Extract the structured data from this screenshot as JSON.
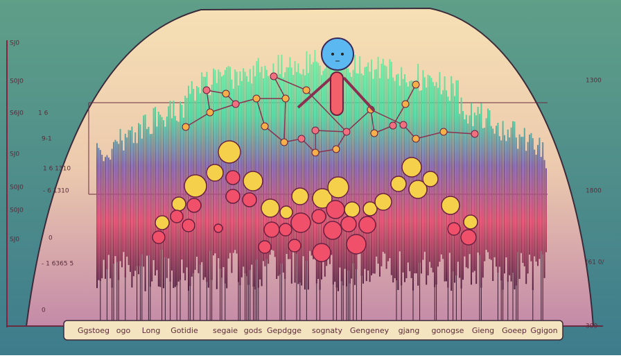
{
  "left_labels": [
    "SJ0",
    "S0J0",
    "S6J0",
    "SJ0",
    "S0J0",
    "S0J0",
    "SJ0"
  ],
  "inner_labels": [
    "1 6",
    "9-1",
    "1 6  1310",
    "- 6  1310",
    "0",
    "- 1 6365 5",
    "0"
  ],
  "right_labels": [
    "1300",
    "1800",
    "(61  0/",
    "300"
  ],
  "bottom_labels": [
    "Ggstoeg",
    "ogo",
    "Long",
    "Gotidie",
    "segaie",
    "gods",
    "Gepdgge",
    "sognaty",
    "Gengeney",
    "gjang",
    "gonogse",
    "Gieng",
    "Goeep",
    "Ggigon"
  ]
}
